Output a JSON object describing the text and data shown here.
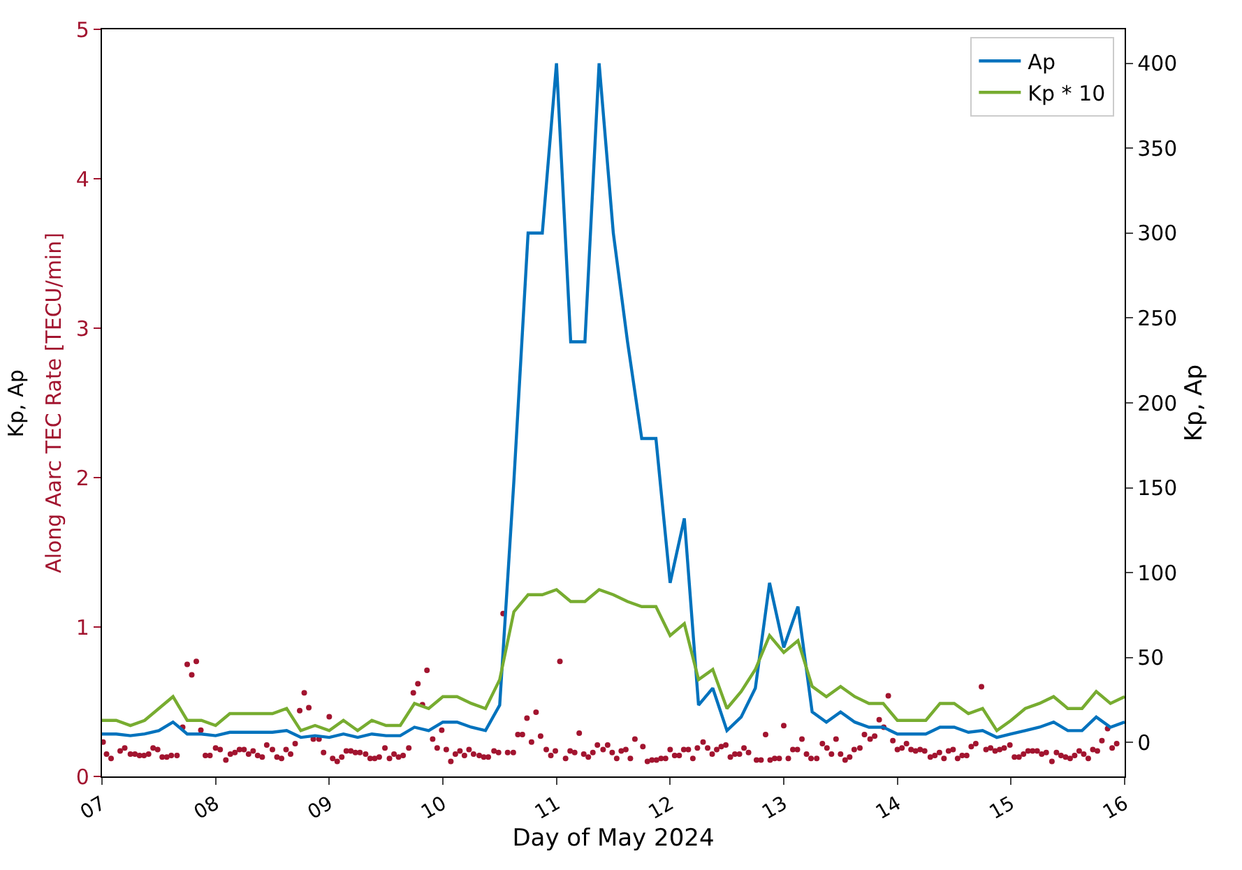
{
  "chart_data": {
    "type": "line",
    "xlabel": "Day of May 2024",
    "ylabel": "Along Aarc TEC Rate [TECU/min]",
    "y2label": "Kp, Ap",
    "annotations": [
      "Kp, Ap"
    ],
    "x": [
      7,
      7.125,
      7.25,
      7.375,
      7.5,
      7.625,
      7.75,
      7.875,
      8,
      8.125,
      8.25,
      8.375,
      8.5,
      8.625,
      8.75,
      8.875,
      9,
      9.125,
      9.25,
      9.375,
      9.5,
      9.625,
      9.75,
      9.875,
      10,
      10.125,
      10.25,
      10.375,
      10.5,
      10.625,
      10.75,
      10.875,
      11,
      11.125,
      11.25,
      11.375,
      11.5,
      11.625,
      11.75,
      11.875,
      12,
      12.125,
      12.25,
      12.375,
      12.5,
      12.625,
      12.75,
      12.875,
      13,
      13.125,
      13.25,
      13.375,
      13.5,
      13.625,
      13.75,
      13.875,
      14,
      14.125,
      14.25,
      14.375,
      14.5,
      14.625,
      14.75,
      14.875,
      15,
      15.125,
      15.25,
      15.375,
      15.5,
      15.625,
      15.75,
      15.875,
      16
    ],
    "series": [
      {
        "type": "scatter",
        "axis": "y",
        "color": "#a2142f",
        "marker": "circle",
        "x": [
          7.01,
          7.04,
          7.08,
          7.16,
          7.2,
          7.25,
          7.29,
          7.33,
          7.37,
          7.41,
          7.45,
          7.49,
          7.53,
          7.57,
          7.61,
          7.66,
          7.71,
          7.75,
          7.79,
          7.83,
          7.87,
          7.91,
          7.95,
          8.0,
          8.04,
          8.09,
          8.13,
          8.17,
          8.21,
          8.25,
          8.29,
          8.33,
          8.37,
          8.41,
          8.45,
          8.5,
          8.54,
          8.58,
          8.62,
          8.66,
          8.7,
          8.74,
          8.78,
          8.82,
          8.86,
          8.91,
          8.95,
          9.0,
          9.03,
          9.07,
          9.11,
          9.15,
          9.19,
          9.23,
          9.27,
          9.32,
          9.36,
          9.4,
          9.44,
          9.49,
          9.53,
          9.57,
          9.61,
          9.65,
          9.7,
          9.74,
          9.78,
          9.82,
          9.86,
          9.91,
          9.95,
          9.99,
          10.03,
          10.07,
          10.11,
          10.15,
          10.19,
          10.23,
          10.27,
          10.32,
          10.36,
          10.4,
          10.45,
          10.49,
          10.53,
          10.57,
          10.62,
          10.66,
          10.7,
          10.74,
          10.78,
          10.82,
          10.86,
          10.91,
          10.95,
          10.99,
          11.03,
          11.08,
          11.12,
          11.16,
          11.2,
          11.24,
          11.28,
          11.32,
          11.36,
          11.41,
          11.45,
          11.49,
          11.53,
          11.57,
          11.61,
          11.65,
          11.69,
          11.76,
          11.8,
          11.84,
          11.88,
          11.92,
          11.96,
          12.0,
          12.04,
          12.08,
          12.12,
          12.16,
          12.2,
          12.24,
          12.29,
          12.33,
          12.37,
          12.41,
          12.45,
          12.49,
          12.53,
          12.57,
          12.61,
          12.65,
          12.69,
          12.76,
          12.8,
          12.84,
          12.88,
          12.92,
          12.96,
          13.0,
          13.04,
          13.08,
          13.12,
          13.16,
          13.2,
          13.24,
          13.29,
          13.34,
          13.38,
          13.42,
          13.46,
          13.5,
          13.54,
          13.58,
          13.62,
          13.67,
          13.71,
          13.76,
          13.8,
          13.84,
          13.88,
          13.92,
          13.96,
          14.0,
          14.04,
          14.08,
          14.12,
          14.16,
          14.2,
          14.24,
          14.29,
          14.33,
          14.37,
          14.41,
          14.45,
          14.49,
          14.53,
          14.57,
          14.61,
          14.65,
          14.69,
          14.74,
          14.78,
          14.82,
          14.86,
          14.9,
          14.94,
          14.99,
          15.03,
          15.07,
          15.11,
          15.15,
          15.19,
          15.23,
          15.27,
          15.31,
          15.36,
          15.4,
          15.44,
          15.48,
          15.52,
          15.56,
          15.6,
          15.64,
          15.68,
          15.72,
          15.76,
          15.8,
          15.85,
          15.89,
          15.93
        ],
        "values": [
          0.23,
          0.15,
          0.12,
          0.17,
          0.19,
          0.15,
          0.15,
          0.14,
          0.14,
          0.15,
          0.19,
          0.18,
          0.13,
          0.13,
          0.14,
          0.14,
          0.33,
          0.75,
          0.68,
          0.77,
          0.31,
          0.14,
          0.14,
          0.19,
          0.18,
          0.11,
          0.15,
          0.16,
          0.18,
          0.18,
          0.15,
          0.17,
          0.14,
          0.13,
          0.21,
          0.18,
          0.13,
          0.12,
          0.18,
          0.15,
          0.22,
          0.44,
          0.56,
          0.46,
          0.25,
          0.25,
          0.16,
          0.4,
          0.12,
          0.1,
          0.13,
          0.17,
          0.17,
          0.16,
          0.16,
          0.15,
          0.12,
          0.12,
          0.13,
          0.19,
          0.12,
          0.15,
          0.13,
          0.14,
          0.19,
          0.56,
          0.62,
          0.48,
          0.71,
          0.25,
          0.19,
          0.31,
          0.18,
          0.1,
          0.15,
          0.17,
          0.14,
          0.18,
          0.15,
          0.14,
          0.13,
          0.13,
          0.17,
          0.16,
          1.09,
          0.16,
          0.16,
          0.28,
          0.28,
          0.39,
          0.23,
          0.43,
          0.27,
          0.18,
          0.14,
          0.17,
          0.77,
          0.12,
          0.17,
          0.16,
          0.29,
          0.15,
          0.13,
          0.16,
          0.21,
          0.18,
          0.21,
          0.16,
          0.12,
          0.17,
          0.18,
          0.12,
          0.25,
          0.2,
          0.1,
          0.11,
          0.11,
          0.12,
          0.12,
          0.18,
          0.14,
          0.14,
          0.18,
          0.18,
          0.12,
          0.19,
          0.23,
          0.19,
          0.15,
          0.18,
          0.2,
          0.21,
          0.13,
          0.15,
          0.15,
          0.19,
          0.16,
          0.11,
          0.11,
          0.28,
          0.11,
          0.12,
          0.12,
          0.34,
          0.12,
          0.18,
          0.18,
          0.25,
          0.15,
          0.12,
          0.12,
          0.22,
          0.19,
          0.15,
          0.25,
          0.15,
          0.11,
          0.13,
          0.18,
          0.19,
          0.28,
          0.25,
          0.27,
          0.38,
          0.33,
          0.54,
          0.24,
          0.18,
          0.19,
          0.22,
          0.18,
          0.17,
          0.18,
          0.17,
          0.13,
          0.14,
          0.16,
          0.12,
          0.17,
          0.18,
          0.12,
          0.14,
          0.14,
          0.2,
          0.22,
          0.6,
          0.18,
          0.19,
          0.17,
          0.18,
          0.19,
          0.21,
          0.13,
          0.13,
          0.15,
          0.17,
          0.17,
          0.17,
          0.15,
          0.16,
          0.1,
          0.16,
          0.14,
          0.13,
          0.12,
          0.14,
          0.17,
          0.15,
          0.12,
          0.18,
          0.17,
          0.24,
          0.32,
          0.19,
          0.22
        ]
      },
      {
        "axis": "y2",
        "name": "Ap",
        "color": "#0072bd",
        "values": [
          5,
          5,
          4,
          5,
          7,
          12,
          5,
          5,
          4,
          6,
          6,
          6,
          6,
          7,
          3,
          4,
          3,
          5,
          3,
          5,
          4,
          4,
          9,
          7,
          12,
          12,
          9,
          7,
          22,
          154,
          300,
          300,
          400,
          236,
          236,
          400,
          300,
          236,
          179,
          179,
          94,
          132,
          22,
          32,
          7,
          15,
          32,
          94,
          56,
          80,
          18,
          12,
          18,
          12,
          9,
          9,
          5,
          5,
          5,
          9,
          9,
          6,
          7,
          3,
          5,
          7,
          9,
          12,
          7,
          7,
          15,
          9,
          12
        ]
      },
      {
        "axis": "y2",
        "name": "Kp * 10",
        "color": "#77ac30",
        "values": [
          13,
          13,
          10,
          13,
          20,
          27,
          13,
          13,
          10,
          17,
          17,
          17,
          17,
          20,
          7,
          10,
          7,
          13,
          7,
          13,
          10,
          10,
          23,
          20,
          27,
          27,
          23,
          20,
          37,
          77,
          87,
          87,
          90,
          83,
          83,
          90,
          87,
          83,
          80,
          80,
          63,
          70,
          37,
          43,
          20,
          30,
          43,
          63,
          53,
          60,
          33,
          27,
          33,
          27,
          23,
          23,
          13,
          13,
          13,
          23,
          23,
          17,
          20,
          7,
          13,
          20,
          23,
          27,
          20,
          20,
          30,
          23,
          27
        ]
      }
    ],
    "xlim": [
      7,
      16
    ],
    "xticks": [
      {
        "value": 7,
        "label": "07"
      },
      {
        "value": 8,
        "label": "08"
      },
      {
        "value": 9,
        "label": "09"
      },
      {
        "value": 10,
        "label": "10"
      },
      {
        "value": 11,
        "label": "11"
      },
      {
        "value": 12,
        "label": "12"
      },
      {
        "value": 13,
        "label": "13"
      },
      {
        "value": 14,
        "label": "14"
      },
      {
        "value": 15,
        "label": "15"
      },
      {
        "value": 16,
        "label": "16"
      }
    ],
    "ylim": [
      0,
      5
    ],
    "yticks": [
      0,
      1,
      2,
      3,
      4,
      5
    ],
    "y2lim": [
      -20,
      420
    ],
    "y2ticks": [
      0,
      50,
      100,
      150,
      200,
      250,
      300,
      350,
      400
    ],
    "legend": "top right",
    "line_style": "solid"
  }
}
